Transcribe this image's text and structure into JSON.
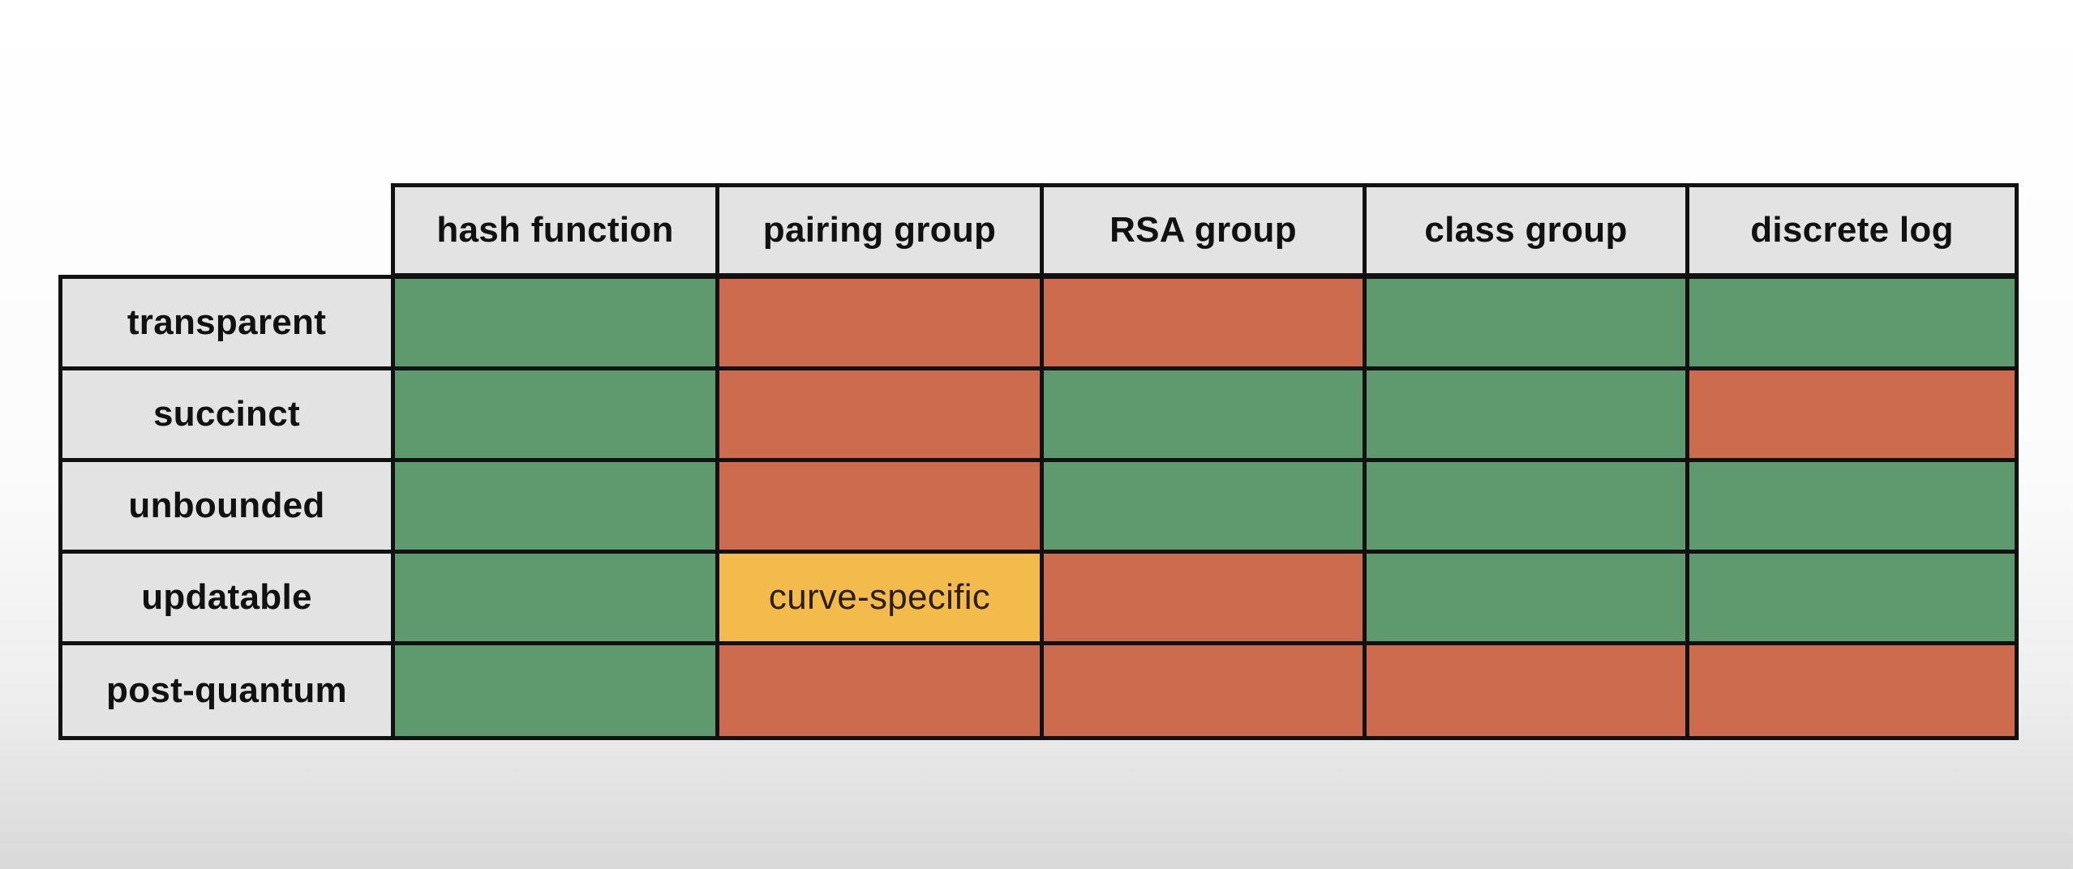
{
  "columns": [
    "hash function",
    "pairing group",
    "RSA group",
    "class group",
    "discrete log"
  ],
  "rows": [
    {
      "label": "transparent",
      "cells": [
        {
          "status": "good",
          "text": ""
        },
        {
          "status": "bad",
          "text": ""
        },
        {
          "status": "bad",
          "text": ""
        },
        {
          "status": "good",
          "text": ""
        },
        {
          "status": "good",
          "text": ""
        }
      ]
    },
    {
      "label": "succinct",
      "cells": [
        {
          "status": "good",
          "text": ""
        },
        {
          "status": "bad",
          "text": ""
        },
        {
          "status": "good",
          "text": ""
        },
        {
          "status": "good",
          "text": ""
        },
        {
          "status": "bad",
          "text": ""
        }
      ]
    },
    {
      "label": "unbounded",
      "cells": [
        {
          "status": "good",
          "text": ""
        },
        {
          "status": "bad",
          "text": ""
        },
        {
          "status": "good",
          "text": ""
        },
        {
          "status": "good",
          "text": ""
        },
        {
          "status": "good",
          "text": ""
        }
      ]
    },
    {
      "label": "updatable",
      "cells": [
        {
          "status": "good",
          "text": ""
        },
        {
          "status": "partial",
          "text": "curve-specific"
        },
        {
          "status": "bad",
          "text": ""
        },
        {
          "status": "good",
          "text": ""
        },
        {
          "status": "good",
          "text": ""
        }
      ]
    },
    {
      "label": "post-quantum",
      "cells": [
        {
          "status": "good",
          "text": ""
        },
        {
          "status": "bad",
          "text": ""
        },
        {
          "status": "bad",
          "text": ""
        },
        {
          "status": "bad",
          "text": ""
        },
        {
          "status": "bad",
          "text": ""
        }
      ]
    }
  ],
  "colors": {
    "good": "#5e9a6e",
    "bad": "#cc6b4e",
    "partial": "#f2bb4c",
    "header": "#e3e3e3"
  }
}
